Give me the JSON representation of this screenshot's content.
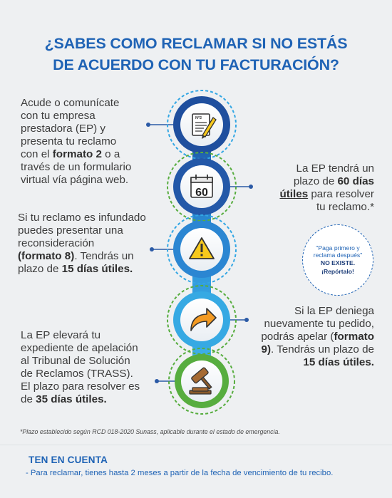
{
  "title": {
    "line1": "¿SABES COMO RECLAMAR SI NO ESTÁS",
    "line2": "DE ACUERDO CON TU FACTURACIÓN?"
  },
  "steps": [
    {
      "icon": "form-document-icon",
      "label": "Nº2",
      "text": [
        "Acude o comunícate",
        "con tu empresa",
        "prestadora (EP) y",
        "presenta tu reclamo",
        "con el ",
        "formato 2",
        " o a",
        "través de un formulario",
        "virtual vía página web."
      ]
    },
    {
      "icon": "calendar-icon",
      "label": "60",
      "text": [
        "La EP tendrá un",
        "plazo de ",
        "60 días",
        "útiles",
        " para resolver",
        "tu reclamo.*"
      ]
    },
    {
      "icon": "warning-icon",
      "label": "!",
      "text": [
        "Si tu reclamo es infundado",
        "puedes presentar una",
        "reconsideración",
        "(formato 8)",
        ". Tendrás un",
        "plazo de ",
        "15 días útiles."
      ]
    },
    {
      "icon": "forward-arrow-icon",
      "label": "",
      "text": [
        "Si la EP deniega",
        "nuevamente tu pedido,",
        "podrás apelar (",
        "formato",
        "9)",
        ". Tendrás un plazo de",
        "15 días útiles."
      ]
    },
    {
      "icon": "gavel-icon",
      "label": "",
      "text": [
        "La EP elevará tu",
        "expediente de apelación",
        "al Tribunal de Solución",
        "de Reclamos (TRASS).",
        "El plazo para resolver es",
        "de ",
        "35 días útiles."
      ]
    }
  ],
  "badge": {
    "line1": "\"Paga primero y reclama después\"",
    "line2": "NO EXISTE.",
    "line3": "¡Repórtalo!"
  },
  "footnote": "*Plazo establecido según RCD 018-2020 Sunass, aplicable durante el estado de emergencia.",
  "ten_en_cuenta": {
    "heading": "TEN EN CUENTA",
    "note": "- Para reclamar, tienes hasta 2 meses a partir de la fecha de vencimiento de tu recibo."
  },
  "colors": {
    "title": "#1f63b5",
    "dark_blue": "#1f5fb0",
    "light_blue": "#33a7e4",
    "green": "#57ad3f",
    "icon_yellow": "#f7c91c",
    "icon_orange": "#f39a22"
  }
}
